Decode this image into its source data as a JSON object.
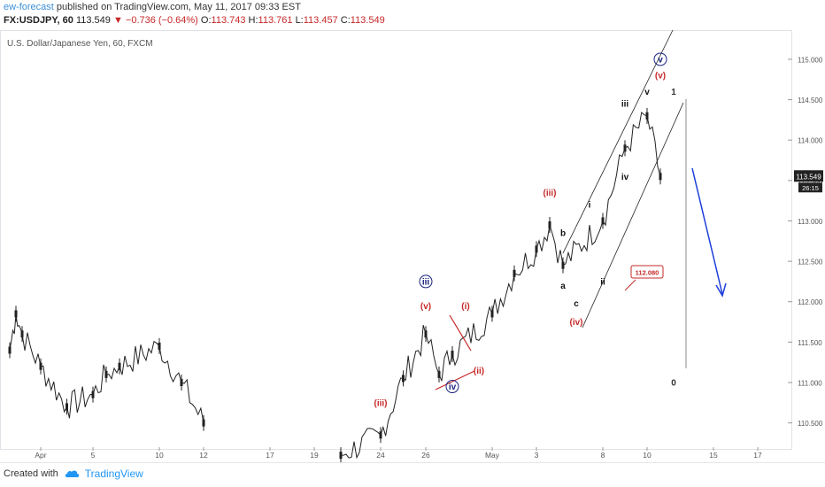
{
  "header": {
    "author": "ew-forecast",
    "published": "published on TradingView.com, May 11, 2017 09:33 EST"
  },
  "quote": {
    "symbol": "FX:USDJPY, 60",
    "last": "113.549",
    "change": "▼ −0.736 (−0.64%)",
    "open_label": "O:",
    "open": "113.743",
    "high_label": "H:",
    "high": "113.761",
    "low_label": "L:",
    "low": "113.457",
    "close_label": "C:",
    "close": "113.549"
  },
  "chart_data": {
    "type": "line",
    "title": "U.S. Dollar/Japanese Yen, 60, FXCM",
    "ylim": [
      110.2,
      115.35
    ],
    "y_ticks": [
      "115.000",
      "114.500",
      "114.000",
      "113.500",
      "113.000",
      "112.500",
      "112.000",
      "111.500",
      "111.000",
      "110.500"
    ],
    "x_ticks": [
      "Apr",
      "5",
      "10",
      "12",
      "17",
      "19",
      "24",
      "26",
      "May",
      "3",
      "8",
      "10",
      "15",
      "17"
    ],
    "series": [
      {
        "values": [
          {
            "d": "2017-03-29",
            "v": 111.4
          },
          {
            "d": "2017-03-30",
            "v": 111.85
          },
          {
            "d": "2017-03-31",
            "v": 111.6
          },
          {
            "d": "2017-04-03",
            "v": 111.2
          },
          {
            "d": "2017-04-04",
            "v": 110.7
          },
          {
            "d": "2017-04-05",
            "v": 110.85
          },
          {
            "d": "2017-04-06",
            "v": 111.1
          },
          {
            "d": "2017-04-07",
            "v": 111.2
          },
          {
            "d": "2017-04-10",
            "v": 111.45
          },
          {
            "d": "2017-04-11",
            "v": 111.0
          },
          {
            "d": "2017-04-12",
            "v": 110.5
          },
          {
            "d": "2017-04-21",
            "v": 110.1
          },
          {
            "d": "2017-04-24",
            "v": 110.35
          },
          {
            "d": "2017-04-25",
            "v": 111.05
          },
          {
            "d": "2017-04-26",
            "v": 111.6
          },
          {
            "d": "2017-04-27",
            "v": 111.1
          },
          {
            "d": "2017-04-28",
            "v": 111.35
          },
          {
            "d": "2017-05-01",
            "v": 111.85
          },
          {
            "d": "2017-05-02",
            "v": 112.35
          },
          {
            "d": "2017-05-03",
            "v": 112.65
          },
          {
            "d": "2017-05-04",
            "v": 112.95
          },
          {
            "d": "2017-05-05",
            "v": 112.45
          },
          {
            "d": "2017-05-08",
            "v": 113.0
          },
          {
            "d": "2017-05-09",
            "v": 113.9
          },
          {
            "d": "2017-05-10",
            "v": 114.3
          },
          {
            "d": "2017-05-11",
            "v": 113.55
          }
        ]
      }
    ],
    "last_price_label": "113.549",
    "countdown_label": "26:15",
    "price_box_label": "112.080",
    "wave_labels": [
      {
        "text": "(iii)",
        "color": "#c62828",
        "d": "2017-04-24",
        "v": 110.75
      },
      {
        "text": "iii",
        "color": "#1a237e",
        "circled": true,
        "d": "2017-04-26",
        "v": 112.25
      },
      {
        "text": "(v)",
        "color": "#c62828",
        "d": "2017-04-26",
        "v": 111.95
      },
      {
        "text": "(i)",
        "color": "#c62828",
        "d": "2017-04-29",
        "v": 111.95
      },
      {
        "text": "(ii)",
        "color": "#c62828",
        "d": "2017-04-30",
        "v": 111.15
      },
      {
        "text": "iv",
        "color": "#1a237e",
        "circled": true,
        "d": "2017-04-28",
        "v": 110.95
      },
      {
        "text": "(iii)",
        "color": "#c62828",
        "d": "2017-05-04",
        "v": 113.35
      },
      {
        "text": "b",
        "color": "#111",
        "d": "2017-05-05",
        "v": 112.85
      },
      {
        "text": "a",
        "color": "#111",
        "d": "2017-05-05",
        "v": 112.2
      },
      {
        "text": "c",
        "color": "#111",
        "d": "2017-05-06",
        "v": 111.98
      },
      {
        "text": "(iv)",
        "color": "#c62828",
        "d": "2017-05-06",
        "v": 111.75
      },
      {
        "text": "i",
        "color": "#111",
        "d": "2017-05-07",
        "v": 113.2
      },
      {
        "text": "ii",
        "color": "#111",
        "d": "2017-05-08",
        "v": 112.25
      },
      {
        "text": "iii",
        "color": "#111",
        "d": "2017-05-09",
        "v": 114.45
      },
      {
        "text": "iv",
        "color": "#111",
        "d": "2017-05-09",
        "v": 113.55
      },
      {
        "text": "v",
        "color": "#111",
        "d": "2017-05-10",
        "v": 114.6
      },
      {
        "text": "(v)",
        "color": "#c62828",
        "d": "2017-05-11",
        "v": 114.8
      },
      {
        "text": "v",
        "color": "#1a237e",
        "circled": true,
        "d": "2017-05-11",
        "v": 115.0
      },
      {
        "text": "1",
        "color": "#333",
        "d": "2017-05-12",
        "v": 114.6
      },
      {
        "text": "0",
        "color": "#333",
        "d": "2017-05-12",
        "v": 111.0
      }
    ],
    "colors": {
      "candle": "#222222",
      "wave_red": "#c62828",
      "wave_blue": "#1a237e",
      "arrow": "#1e3fd8",
      "channel": "#222222",
      "price_tag_bg": "#222222"
    }
  },
  "footer": {
    "created_with": "Created with",
    "brand": "TradingView",
    "logo_icon": "tradingview-cloud-icon"
  }
}
